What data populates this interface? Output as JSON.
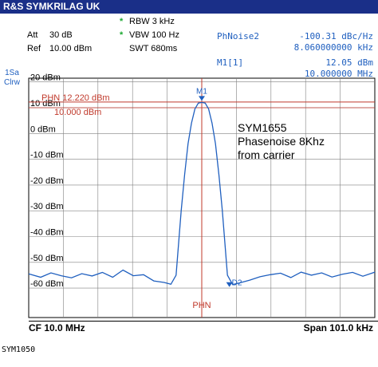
{
  "header": {
    "title": "R&S SYMKRILAG UK",
    "rbw": "RBW 3 kHz",
    "vbw": "VBW 100 Hz",
    "att_label": "Att",
    "att_value": "30 dB",
    "ref_label": "Ref",
    "ref_value": "10.00 dBm",
    "swt": "SWT 680ms",
    "star_symbol": "*"
  },
  "readouts": {
    "phnoise_label": "PhNoise2",
    "phnoise_value": "-100.31 dBc/Hz",
    "phnoise_freq": "8.060000000 kHz",
    "m1_label": "M1[1]",
    "m1_level": "12.05 dBm",
    "m1_freq": "10.000000 MHz"
  },
  "side": {
    "line1": "1Sa",
    "line2": "Clrw"
  },
  "footer": {
    "cf": "CF 10.0 MHz",
    "span": "Span 101.0 kHz"
  },
  "sym_code": "SYM1050",
  "colors": {
    "trace": "#1f5fbf",
    "marker_line": "#c0392b",
    "titlebar": "#1a2f88",
    "grid": "#808080"
  },
  "chart_data": {
    "type": "line",
    "xlabel": "",
    "ylabel": "",
    "y_unit": "dBm",
    "ylim": [
      -65,
      26
    ],
    "xlim": [
      -50.5,
      50.5
    ],
    "x_unit": "kHz offset from CF",
    "yticks": [
      20,
      10,
      0,
      -10,
      -20,
      -30,
      -40,
      -50,
      -60
    ],
    "ytick_labels": [
      "20 dBm",
      "10 dBm",
      "0 dBm",
      "-10 dBm",
      "-20 dBm",
      "-30 dBm",
      "-40 dBm",
      "-50 dBm",
      "-60 dBm"
    ],
    "grid": true,
    "phn_line": {
      "label": "PHN",
      "value": 12.22,
      "display": "PHN  12.220 dBm"
    },
    "ref_line": {
      "value": 10.0,
      "display": "10.000 dBm"
    },
    "bottom_label": "PHN",
    "markers": [
      {
        "name": "M1",
        "x": 0.0,
        "y": 12.05
      },
      {
        "name": "D2",
        "x": 8.06,
        "y": -60.2
      }
    ],
    "annotation": [
      "SYM1655",
      "Phasenoise 8Khz",
      "from carrier"
    ],
    "series": [
      {
        "x": [
          -50.5,
          -47,
          -44,
          -41,
          -38,
          -35,
          -32,
          -29,
          -26,
          -23,
          -20,
          -17,
          -14,
          -11,
          -9,
          -7.5,
          -6,
          -5,
          -4,
          -3,
          -2,
          -1,
          0,
          1,
          2,
          3,
          4,
          5,
          6,
          7.5,
          9,
          11,
          14,
          17,
          20,
          23,
          26,
          29,
          32,
          35,
          38,
          41,
          44,
          47,
          50.5
        ],
        "y": [
          -54.5,
          -55.8,
          -54.1,
          -55.2,
          -56.0,
          -54.4,
          -55.3,
          -53.9,
          -55.8,
          -53.0,
          -55.2,
          -54.8,
          -57.2,
          -57.8,
          -58.5,
          -55.0,
          -30.0,
          -16.0,
          -4.0,
          4.0,
          9.5,
          11.8,
          12.05,
          11.8,
          9.5,
          4.0,
          -4.0,
          -16.0,
          -30.0,
          -55.0,
          -58.6,
          -58.0,
          -56.9,
          -55.6,
          -54.8,
          -54.2,
          -55.9,
          -53.8,
          -55.0,
          -54.1,
          -55.7,
          -54.6,
          -53.9,
          -55.4,
          -53.8
        ]
      }
    ]
  }
}
